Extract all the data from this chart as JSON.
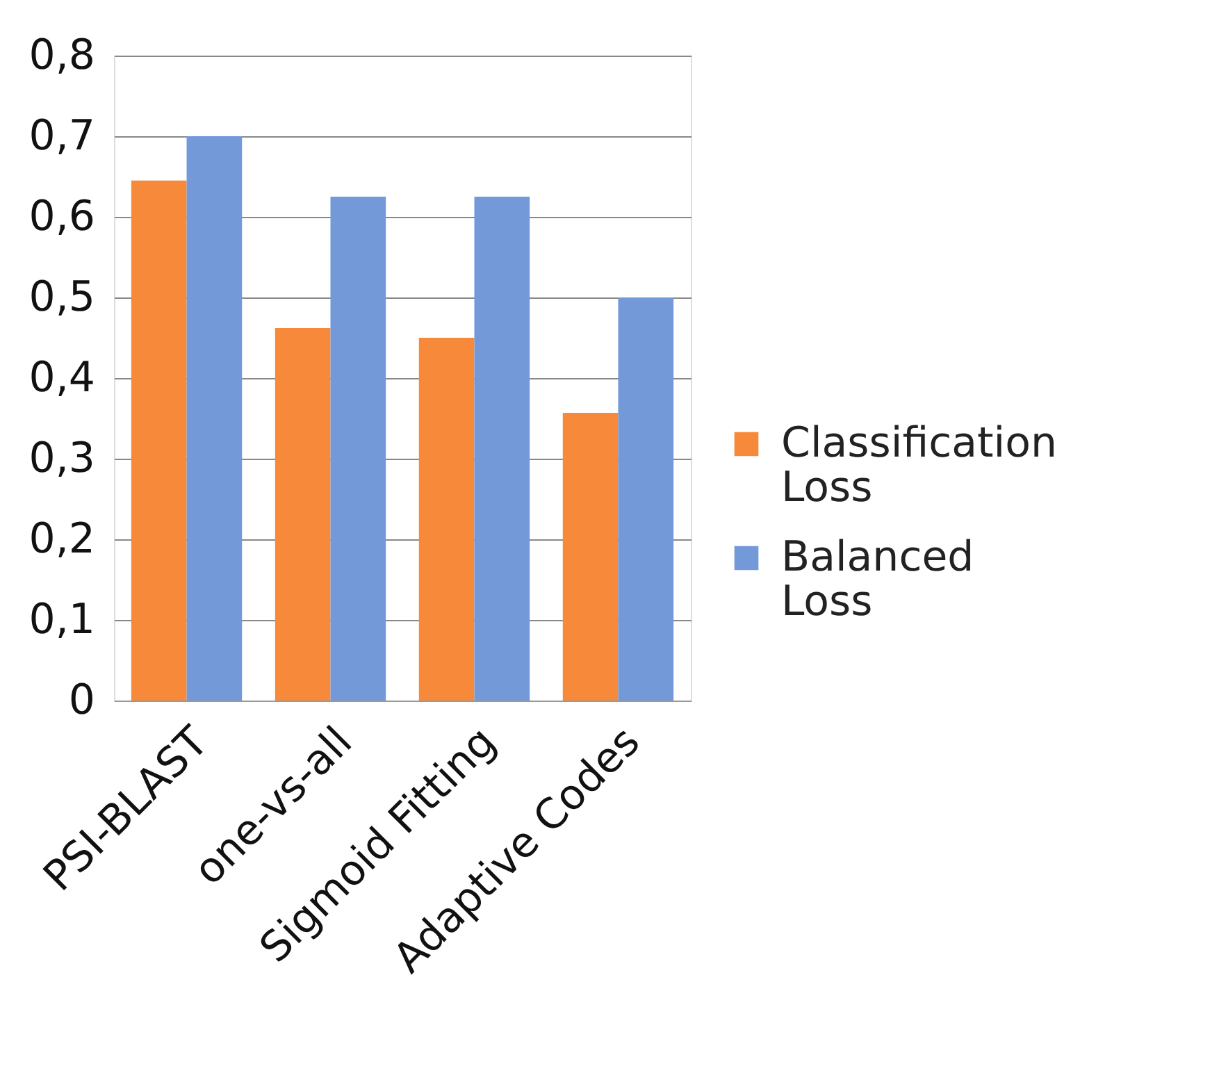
{
  "chart_data": {
    "type": "bar",
    "categories": [
      "PSI-BLAST",
      "one-vs-all",
      "Sigmoid Fitting",
      "Adaptive Codes"
    ],
    "series": [
      {
        "name": "Classification Loss",
        "color": "#f7893a",
        "values": [
          0.645,
          0.462,
          0.45,
          0.357
        ]
      },
      {
        "name": "Balanced Loss",
        "color": "#7499d8",
        "values": [
          0.7,
          0.625,
          0.625,
          0.5
        ]
      }
    ],
    "ylim": [
      0,
      0.8
    ],
    "yticks": [
      {
        "value": 0,
        "label": "0"
      },
      {
        "value": 0.1,
        "label": "0,1"
      },
      {
        "value": 0.2,
        "label": "0,2"
      },
      {
        "value": 0.3,
        "label": "0,3"
      },
      {
        "value": 0.4,
        "label": "0,4"
      },
      {
        "value": 0.5,
        "label": "0,5"
      },
      {
        "value": 0.6,
        "label": "0,6"
      },
      {
        "value": 0.7,
        "label": "0,7"
      },
      {
        "value": 0.8,
        "label": "0,8"
      }
    ],
    "grid": "y",
    "legend": "right"
  }
}
